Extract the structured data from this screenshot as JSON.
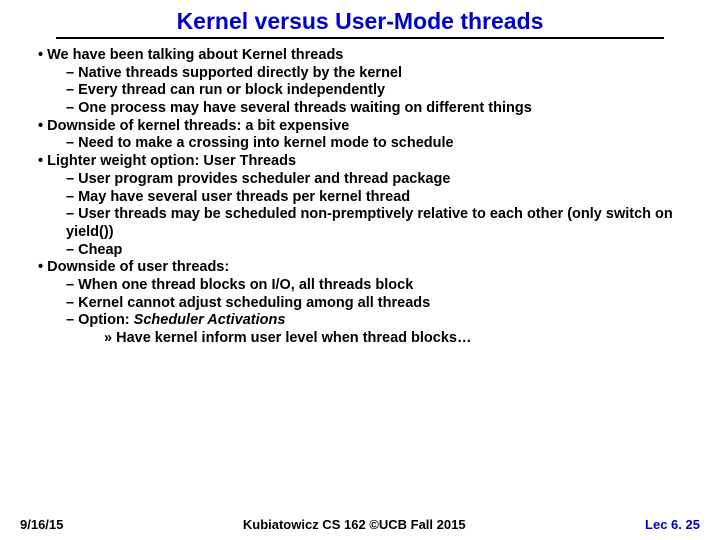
{
  "title": "Kernel versus User-Mode threads",
  "bullets": {
    "b1": "We have been talking about Kernel threads",
    "b1a": "Native threads supported directly by the kernel",
    "b1b": "Every thread can run or block independently",
    "b1c": "One process may have several threads waiting on different things",
    "b2": "Downside of kernel threads: a bit expensive",
    "b2a": "Need to make a crossing into kernel mode to schedule",
    "b3": "Lighter weight option: User Threads",
    "b3a": "User program provides scheduler and thread package",
    "b3b": "May have several user threads per kernel thread",
    "b3c": "User threads may be scheduled non-premptively relative to each other (only switch on yield())",
    "b3d": "Cheap",
    "b4": "Downside of user threads:",
    "b4a": "When one thread blocks on I/O, all threads block",
    "b4b": "Kernel cannot adjust scheduling among all threads",
    "b4c_pre": "Option: ",
    "b4c_em": "Scheduler Activations",
    "b4c1": "Have kernel inform user level when thread blocks…"
  },
  "footer": {
    "left": "9/16/15",
    "center": "Kubiatowicz CS 162 ©UCB Fall 2015",
    "right": "Lec 6. 25"
  },
  "colors": {
    "title": "#0000cc",
    "text": "#000000",
    "bg": "#ffffff",
    "lec": "#0000cc"
  }
}
